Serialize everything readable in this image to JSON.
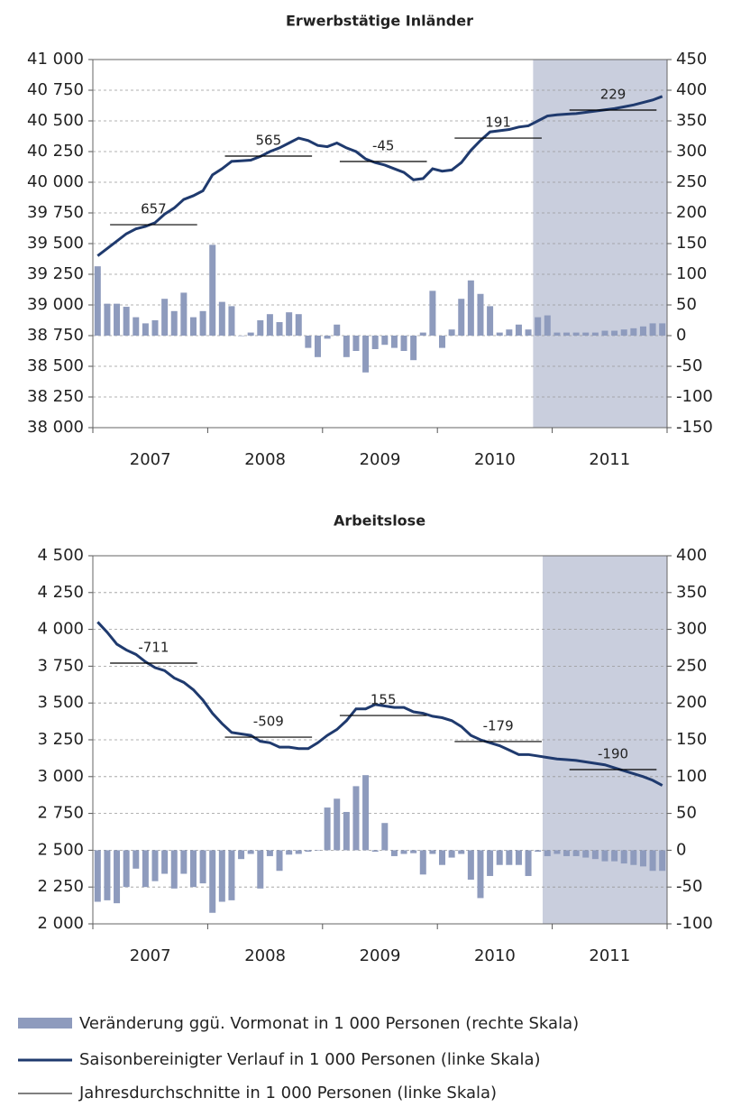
{
  "chart_data": [
    {
      "type": "bar-line",
      "title": "Erwerbstätige Inländer",
      "x_labels": [
        "2007",
        "2008",
        "2009",
        "2010",
        "2011"
      ],
      "shaded_from": 46,
      "shade_color": "#c9cedd",
      "ylim": [
        38000,
        41000
      ],
      "yticks": [
        {
          "value": 38000,
          "label": "38 000"
        },
        {
          "value": 38250,
          "label": "38 250"
        },
        {
          "value": 38500,
          "label": "38 500"
        },
        {
          "value": 38750,
          "label": "38 750"
        },
        {
          "value": 39000,
          "label": "39 000"
        },
        {
          "value": 39250,
          "label": "39 250"
        },
        {
          "value": 39500,
          "label": "39 500"
        },
        {
          "value": 39750,
          "label": "39 750"
        },
        {
          "value": 40000,
          "label": "40 000"
        },
        {
          "value": 40250,
          "label": "40 250"
        },
        {
          "value": 40500,
          "label": "40 500"
        },
        {
          "value": 40750,
          "label": "40 750"
        },
        {
          "value": 41000,
          "label": "41 000"
        }
      ],
      "y2lim": [
        -150,
        450
      ],
      "y2ticks": [
        -150,
        -100,
        -50,
        0,
        50,
        100,
        150,
        200,
        250,
        300,
        350,
        400,
        450
      ],
      "grid": true,
      "series": [
        {
          "name": "Veränderung ggü. Vormonat in 1 000 Personen (rechte Skala)",
          "color": "#8e9bbd",
          "axis": "y2",
          "kind": "bar",
          "values": [
            113,
            52,
            52,
            47,
            30,
            20,
            25,
            60,
            40,
            70,
            30,
            40,
            148,
            55,
            48,
            0,
            5,
            25,
            35,
            22,
            38,
            35,
            -20,
            -35,
            -5,
            18,
            -35,
            -25,
            -60,
            -22,
            -15,
            -20,
            -25,
            -40,
            5,
            73,
            -20,
            10,
            60,
            90,
            68,
            48,
            5,
            10,
            18,
            10,
            30,
            33,
            5,
            5,
            5,
            5,
            5,
            8,
            8,
            10,
            12,
            15,
            20,
            20
          ]
        },
        {
          "name": "Saisonbereinigter Verlauf in 1 000 Personen (linke Skala)",
          "color": "#1f3a6e",
          "kind": "line",
          "values": [
            39400,
            39460,
            39520,
            39580,
            39620,
            39640,
            39670,
            39740,
            39790,
            39860,
            39890,
            39930,
            40060,
            40110,
            40170,
            40175,
            40180,
            40210,
            40250,
            40280,
            40320,
            40360,
            40340,
            40300,
            40290,
            40320,
            40280,
            40250,
            40190,
            40160,
            40140,
            40110,
            40080,
            40020,
            40030,
            40110,
            40090,
            40100,
            40160,
            40260,
            40340,
            40410,
            40420,
            40430,
            40450,
            40460,
            40500,
            40540,
            40550,
            40555,
            40560,
            40570,
            40580,
            40590,
            40600,
            40615,
            40630,
            40650,
            40670,
            40700
          ]
        },
        {
          "name": "Jahresdurchschnitte in 1 000 Personen (linke Skala)",
          "color": "#000000",
          "kind": "annual",
          "values": [
            39654,
            40213,
            40169,
            40360,
            40588
          ],
          "changes": [
            657,
            565,
            -45,
            191,
            229
          ]
        }
      ]
    },
    {
      "type": "bar-line",
      "title": "Arbeitslose",
      "x_labels": [
        "2007",
        "2008",
        "2009",
        "2010",
        "2011"
      ],
      "shaded_from": 47,
      "shade_color": "#c9cedd",
      "ylim": [
        2000,
        4500
      ],
      "yticks": [
        {
          "value": 2000,
          "label": "2 000"
        },
        {
          "value": 2250,
          "label": "2 250"
        },
        {
          "value": 2500,
          "label": "2 500"
        },
        {
          "value": 2750,
          "label": "2 750"
        },
        {
          "value": 3000,
          "label": "3 000"
        },
        {
          "value": 3250,
          "label": "3 250"
        },
        {
          "value": 3500,
          "label": "3 500"
        },
        {
          "value": 3750,
          "label": "3 750"
        },
        {
          "value": 4000,
          "label": "4 000"
        },
        {
          "value": 4250,
          "label": "4 250"
        },
        {
          "value": 4500,
          "label": "4 500"
        }
      ],
      "y2lim": [
        -100,
        400
      ],
      "y2ticks": [
        -100,
        -50,
        0,
        50,
        100,
        150,
        200,
        250,
        300,
        350,
        400
      ],
      "grid": true,
      "series": [
        {
          "color": "#8e9bbd",
          "axis": "y2",
          "kind": "bar",
          "values": [
            -70,
            -68,
            -72,
            -50,
            -25,
            -50,
            -42,
            -32,
            -52,
            -32,
            -50,
            -45,
            -85,
            -70,
            -68,
            -12,
            -5,
            -52,
            -8,
            -28,
            -6,
            -5,
            -2,
            0,
            58,
            70,
            52,
            87,
            102,
            -2,
            37,
            -8,
            -5,
            -4,
            -33,
            -5,
            -20,
            -10,
            -5,
            -40,
            -65,
            -35,
            -20,
            -20,
            -20,
            -35,
            -2,
            -8,
            -5,
            -8,
            -8,
            -10,
            -12,
            -15,
            -15,
            -18,
            -20,
            -22,
            -28,
            -28
          ]
        },
        {
          "color": "#1f3a6e",
          "kind": "line",
          "values": [
            4050,
            3980,
            3900,
            3860,
            3830,
            3780,
            3740,
            3720,
            3670,
            3640,
            3590,
            3520,
            3430,
            3360,
            3300,
            3290,
            3280,
            3240,
            3230,
            3200,
            3200,
            3190,
            3190,
            3230,
            3280,
            3320,
            3380,
            3460,
            3460,
            3490,
            3480,
            3470,
            3470,
            3440,
            3430,
            3410,
            3400,
            3380,
            3340,
            3280,
            3250,
            3230,
            3210,
            3180,
            3150,
            3150,
            3140,
            3130,
            3120,
            3115,
            3110,
            3100,
            3090,
            3080,
            3060,
            3040,
            3020,
            3000,
            2975,
            2940
          ]
        },
        {
          "color": "#000000",
          "kind": "annual",
          "values": [
            3771,
            3268,
            3415,
            3238,
            3048
          ],
          "changes": [
            -711,
            -509,
            155,
            -179,
            -190
          ]
        }
      ]
    }
  ]
}
